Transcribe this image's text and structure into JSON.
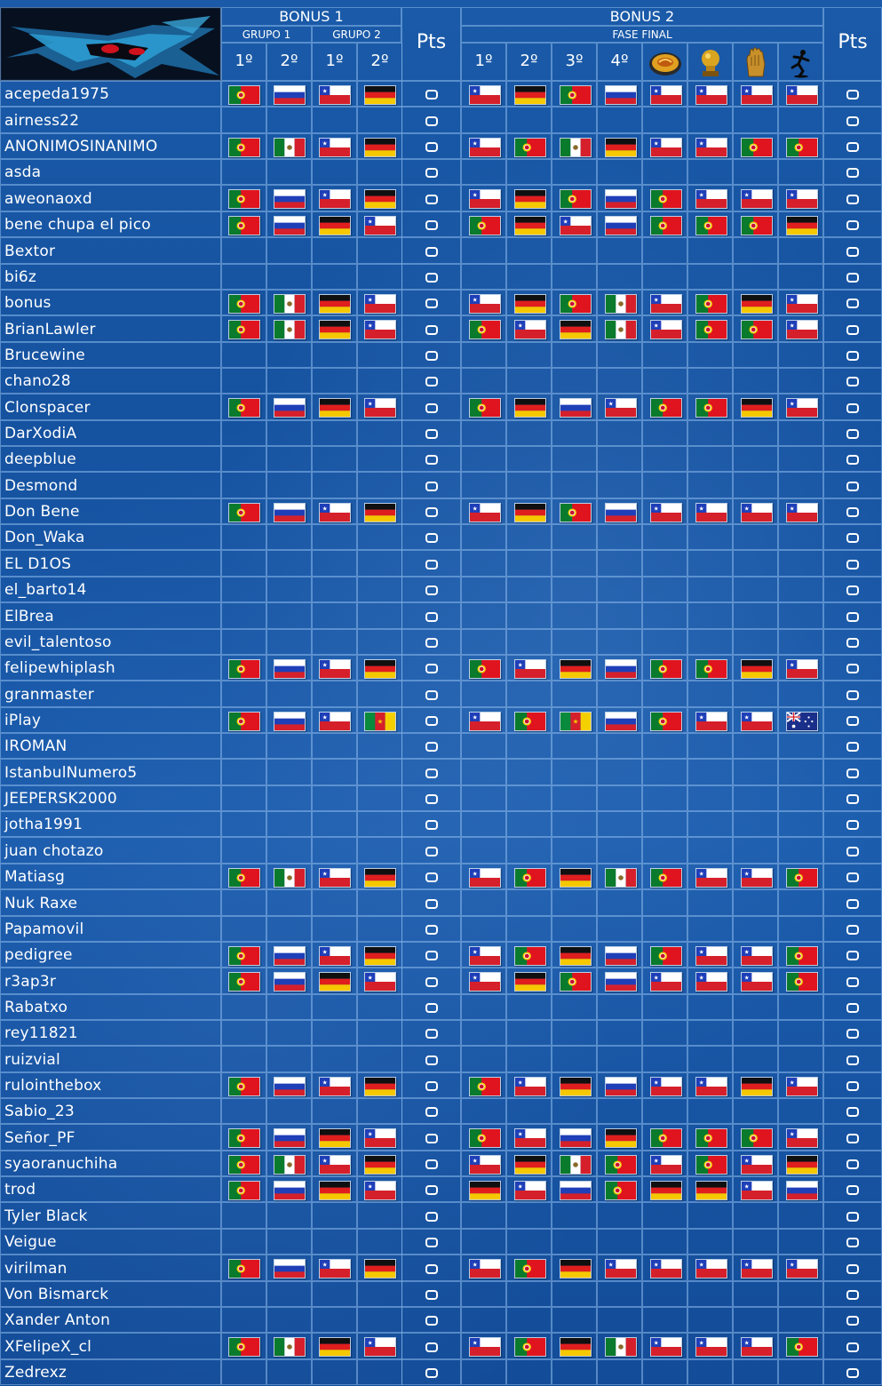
{
  "header": {
    "bonus1": "BONUS 1",
    "bonus2": "BONUS 2",
    "grupo1": "GRUPO 1",
    "grupo2": "GRUPO 2",
    "fase_final": "FASE FINAL",
    "pts": "Pts",
    "b1_cols": [
      "1º",
      "2º",
      "1º",
      "2º"
    ],
    "b2_cols": [
      "1º",
      "2º",
      "3º",
      "4º"
    ],
    "b2_icons": [
      "golden-ball-icon",
      "golden-boot-icon",
      "golden-glove-icon",
      "fair-play-icon"
    ]
  },
  "colors": {
    "background": "#1552a0",
    "grid_line": "#8cb9eb",
    "text": "#ffffff"
  },
  "flag_codes": {
    "PT": "Portugal",
    "RU": "Russia",
    "CL": "Chile",
    "DE": "Germany",
    "MX": "Mexico",
    "CM": "Cameroon",
    "AU": "Australia"
  },
  "players": [
    {
      "name": "acepeda1975",
      "pts": "0",
      "b1": [
        "PT",
        "RU",
        "CL",
        "DE"
      ],
      "b2": [
        "CL",
        "DE",
        "PT",
        "RU",
        "CL",
        "CL",
        "CL",
        "CL"
      ]
    },
    {
      "name": "airness22",
      "pts": "0",
      "b1": [],
      "b2": []
    },
    {
      "name": "ANONIMOSINANIMO",
      "pts": "0",
      "b1": [
        "PT",
        "MX",
        "CL",
        "DE"
      ],
      "b2": [
        "CL",
        "PT",
        "MX",
        "DE",
        "CL",
        "CL",
        "PT",
        "PT"
      ]
    },
    {
      "name": "asda",
      "pts": "0",
      "b1": [],
      "b2": []
    },
    {
      "name": "aweonaoxd",
      "pts": "0",
      "b1": [
        "PT",
        "RU",
        "CL",
        "DE"
      ],
      "b2": [
        "CL",
        "DE",
        "PT",
        "RU",
        "PT",
        "CL",
        "CL",
        "CL"
      ]
    },
    {
      "name": "bene chupa el pico",
      "pts": "0",
      "b1": [
        "PT",
        "RU",
        "DE",
        "CL"
      ],
      "b2": [
        "PT",
        "DE",
        "CL",
        "RU",
        "PT",
        "PT",
        "PT",
        "DE"
      ]
    },
    {
      "name": "Bextor",
      "pts": "0",
      "b1": [],
      "b2": []
    },
    {
      "name": "bi6z",
      "pts": "0",
      "b1": [],
      "b2": []
    },
    {
      "name": "bonus",
      "pts": "0",
      "b1": [
        "PT",
        "MX",
        "DE",
        "CL"
      ],
      "b2": [
        "CL",
        "DE",
        "PT",
        "MX",
        "CL",
        "PT",
        "DE",
        "CL"
      ]
    },
    {
      "name": "BrianLawler",
      "pts": "0",
      "b1": [
        "PT",
        "MX",
        "DE",
        "CL"
      ],
      "b2": [
        "PT",
        "CL",
        "DE",
        "MX",
        "CL",
        "PT",
        "PT",
        "CL"
      ]
    },
    {
      "name": "Brucewine",
      "pts": "0",
      "b1": [],
      "b2": []
    },
    {
      "name": "chano28",
      "pts": "0",
      "b1": [],
      "b2": []
    },
    {
      "name": "Clonspacer",
      "pts": "0",
      "b1": [
        "PT",
        "RU",
        "DE",
        "CL"
      ],
      "b2": [
        "PT",
        "DE",
        "RU",
        "CL",
        "PT",
        "PT",
        "DE",
        "CL"
      ]
    },
    {
      "name": "DarXodiA",
      "pts": "0",
      "b1": [],
      "b2": []
    },
    {
      "name": "deepblue",
      "pts": "0",
      "b1": [],
      "b2": []
    },
    {
      "name": "Desmond",
      "pts": "0",
      "b1": [],
      "b2": []
    },
    {
      "name": "Don Bene",
      "pts": "0",
      "b1": [
        "PT",
        "RU",
        "CL",
        "DE"
      ],
      "b2": [
        "CL",
        "DE",
        "PT",
        "RU",
        "CL",
        "CL",
        "CL",
        "CL"
      ]
    },
    {
      "name": "Don_Waka",
      "pts": "0",
      "b1": [],
      "b2": []
    },
    {
      "name": "EL D1OS",
      "pts": "0",
      "b1": [],
      "b2": []
    },
    {
      "name": "el_barto14",
      "pts": "0",
      "b1": [],
      "b2": []
    },
    {
      "name": "ElBrea",
      "pts": "0",
      "b1": [],
      "b2": []
    },
    {
      "name": "evil_talentoso",
      "pts": "0",
      "b1": [],
      "b2": []
    },
    {
      "name": "felipewhiplash",
      "pts": "0",
      "b1": [
        "PT",
        "RU",
        "CL",
        "DE"
      ],
      "b2": [
        "PT",
        "CL",
        "DE",
        "RU",
        "PT",
        "PT",
        "DE",
        "CL"
      ]
    },
    {
      "name": "granmaster",
      "pts": "0",
      "b1": [],
      "b2": []
    },
    {
      "name": "iPlay",
      "pts": "0",
      "b1": [
        "PT",
        "RU",
        "CL",
        "CM"
      ],
      "b2": [
        "CL",
        "PT",
        "CM",
        "RU",
        "PT",
        "CL",
        "CL",
        "AU"
      ]
    },
    {
      "name": "IROMAN",
      "pts": "0",
      "b1": [],
      "b2": []
    },
    {
      "name": "IstanbulNumero5",
      "pts": "0",
      "b1": [],
      "b2": []
    },
    {
      "name": "JEEPERSK2000",
      "pts": "0",
      "b1": [],
      "b2": []
    },
    {
      "name": "jotha1991",
      "pts": "0",
      "b1": [],
      "b2": []
    },
    {
      "name": "juan chotazo",
      "pts": "0",
      "b1": [],
      "b2": []
    },
    {
      "name": "Matiasg",
      "pts": "0",
      "b1": [
        "PT",
        "MX",
        "CL",
        "DE"
      ],
      "b2": [
        "CL",
        "PT",
        "DE",
        "MX",
        "PT",
        "CL",
        "CL",
        "PT"
      ]
    },
    {
      "name": "Nuk Raxe",
      "pts": "0",
      "b1": [],
      "b2": []
    },
    {
      "name": "Papamovil",
      "pts": "0",
      "b1": [],
      "b2": []
    },
    {
      "name": "pedigree",
      "pts": "0",
      "b1": [
        "PT",
        "RU",
        "CL",
        "DE"
      ],
      "b2": [
        "CL",
        "PT",
        "DE",
        "RU",
        "PT",
        "CL",
        "CL",
        "PT"
      ]
    },
    {
      "name": "r3ap3r",
      "pts": "0",
      "b1": [
        "PT",
        "RU",
        "DE",
        "CL"
      ],
      "b2": [
        "CL",
        "DE",
        "PT",
        "RU",
        "CL",
        "CL",
        "CL",
        "PT"
      ]
    },
    {
      "name": "Rabatxo",
      "pts": "0",
      "b1": [],
      "b2": []
    },
    {
      "name": "rey11821",
      "pts": "0",
      "b1": [],
      "b2": []
    },
    {
      "name": "ruizvial",
      "pts": "0",
      "b1": [],
      "b2": []
    },
    {
      "name": "rulointhebox",
      "pts": "0",
      "b1": [
        "PT",
        "RU",
        "CL",
        "DE"
      ],
      "b2": [
        "PT",
        "CL",
        "DE",
        "RU",
        "CL",
        "CL",
        "DE",
        "CL"
      ]
    },
    {
      "name": "Sabio_23",
      "pts": "0",
      "b1": [],
      "b2": []
    },
    {
      "name": "Señor_PF",
      "pts": "0",
      "b1": [
        "PT",
        "RU",
        "DE",
        "CL"
      ],
      "b2": [
        "PT",
        "CL",
        "RU",
        "DE",
        "PT",
        "PT",
        "PT",
        "CL"
      ]
    },
    {
      "name": "syaoranuchiha",
      "pts": "0",
      "b1": [
        "PT",
        "MX",
        "CL",
        "DE"
      ],
      "b2": [
        "CL",
        "DE",
        "MX",
        "PT",
        "CL",
        "PT",
        "CL",
        "DE"
      ]
    },
    {
      "name": "trod",
      "pts": "0",
      "b1": [
        "PT",
        "RU",
        "DE",
        "CL"
      ],
      "b2": [
        "DE",
        "CL",
        "RU",
        "PT",
        "DE",
        "DE",
        "CL",
        "RU"
      ]
    },
    {
      "name": "Tyler Black",
      "pts": "0",
      "b1": [],
      "b2": []
    },
    {
      "name": "Veigue",
      "pts": "0",
      "b1": [],
      "b2": []
    },
    {
      "name": "virilman",
      "pts": "0",
      "b1": [
        "PT",
        "RU",
        "CL",
        "DE"
      ],
      "b2": [
        "CL",
        "PT",
        "DE",
        "CL",
        "CL",
        "CL",
        "CL",
        "CL"
      ]
    },
    {
      "name": "Von Bismarck",
      "pts": "0",
      "b1": [],
      "b2": []
    },
    {
      "name": "Xander Anton",
      "pts": "0",
      "b1": [],
      "b2": []
    },
    {
      "name": "XFelipeX_cl",
      "pts": "0",
      "b1": [
        "PT",
        "MX",
        "DE",
        "CL"
      ],
      "b2": [
        "CL",
        "PT",
        "DE",
        "MX",
        "CL",
        "CL",
        "CL",
        "PT"
      ]
    },
    {
      "name": "Zedrexz",
      "pts": "0",
      "b1": [],
      "b2": []
    }
  ]
}
